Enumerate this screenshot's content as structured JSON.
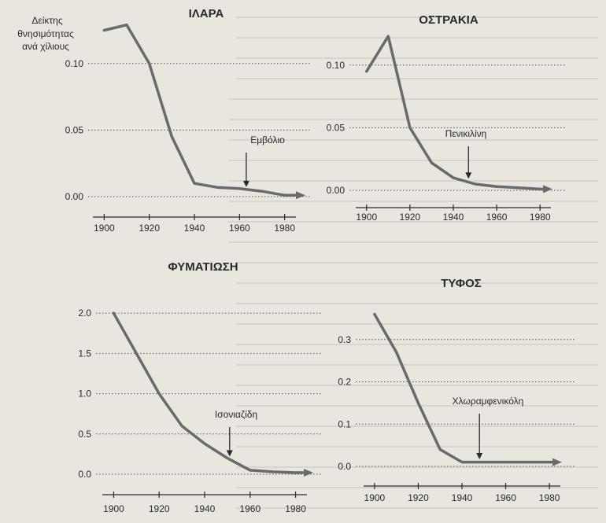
{
  "figure": {
    "ylabel_lines": [
      "Δείκτης",
      "θνησιμότητας",
      "ανά χίλιους"
    ],
    "colors": {
      "ink": "#2a2a2a",
      "curve": "#6a6a6a",
      "grid": "#555555",
      "paper": "#e9e5df",
      "bleed": "#c7c1b8"
    }
  },
  "chart_data": [
    {
      "type": "line",
      "title": "ΙΛΑΡΑ",
      "x": [
        1900,
        1910,
        1920,
        1930,
        1940,
        1950,
        1960,
        1970,
        1980
      ],
      "y": [
        0.125,
        0.129,
        0.1,
        0.045,
        0.01,
        0.007,
        0.006,
        0.004,
        0.001
      ],
      "xlim": [
        1895,
        1985
      ],
      "ylim": [
        0.0,
        0.13
      ],
      "xticks": [
        1900,
        1920,
        1940,
        1960,
        1980
      ],
      "yticks": [
        0.0,
        0.05,
        0.1
      ],
      "ytick_labels": [
        "0.00",
        "0.05",
        "0.10"
      ],
      "annotation": {
        "label": "Εμβόλιο",
        "x": 1963,
        "y": 0.006
      }
    },
    {
      "type": "line",
      "title": "ΟΣΤΡΑΚΙΑ",
      "x": [
        1900,
        1910,
        1920,
        1930,
        1940,
        1950,
        1960,
        1970,
        1980
      ],
      "y": [
        0.095,
        0.123,
        0.05,
        0.022,
        0.01,
        0.005,
        0.003,
        0.002,
        0.001
      ],
      "xlim": [
        1895,
        1985
      ],
      "ylim": [
        0.0,
        0.13
      ],
      "xticks": [
        1900,
        1920,
        1940,
        1960,
        1980
      ],
      "yticks": [
        0.0,
        0.05,
        0.1
      ],
      "ytick_labels": [
        "0.00",
        "0.05",
        "0.10"
      ],
      "annotation": {
        "label": "Πενικιλίνη",
        "x": 1947,
        "y": 0.008
      }
    },
    {
      "type": "line",
      "title": "ΦΥΜΑΤΙΩΣΗ",
      "x": [
        1900,
        1910,
        1920,
        1930,
        1940,
        1950,
        1960,
        1970,
        1980
      ],
      "y": [
        2.0,
        1.5,
        1.0,
        0.6,
        0.38,
        0.2,
        0.05,
        0.03,
        0.02
      ],
      "xlim": [
        1895,
        1985
      ],
      "ylim": [
        0.0,
        2.1
      ],
      "xticks": [
        1900,
        1920,
        1940,
        1960,
        1980
      ],
      "yticks": [
        0.0,
        0.5,
        1.0,
        1.5,
        2.0
      ],
      "ytick_labels": [
        "0.0",
        "0.5",
        "1.0",
        "1.5",
        "2.0"
      ],
      "annotation": {
        "label": "Ισονιαζίδη",
        "x": 1951,
        "y": 0.2
      }
    },
    {
      "type": "line",
      "title": "ΤΥΦΟΣ",
      "x": [
        1900,
        1910,
        1920,
        1930,
        1940,
        1950,
        1960,
        1970,
        1980
      ],
      "y": [
        0.36,
        0.27,
        0.15,
        0.04,
        0.01,
        0.01,
        0.01,
        0.01,
        0.01
      ],
      "xlim": [
        1895,
        1985
      ],
      "ylim": [
        0.0,
        0.4
      ],
      "xticks": [
        1900,
        1920,
        1940,
        1960,
        1980
      ],
      "yticks": [
        0.0,
        0.1,
        0.2,
        0.3
      ],
      "ytick_labels": [
        "0.0",
        "0.1",
        "0.2",
        "0.3"
      ],
      "annotation": {
        "label": "Χλωραμφενικόλη",
        "x": 1948,
        "y": 0.013
      }
    }
  ]
}
